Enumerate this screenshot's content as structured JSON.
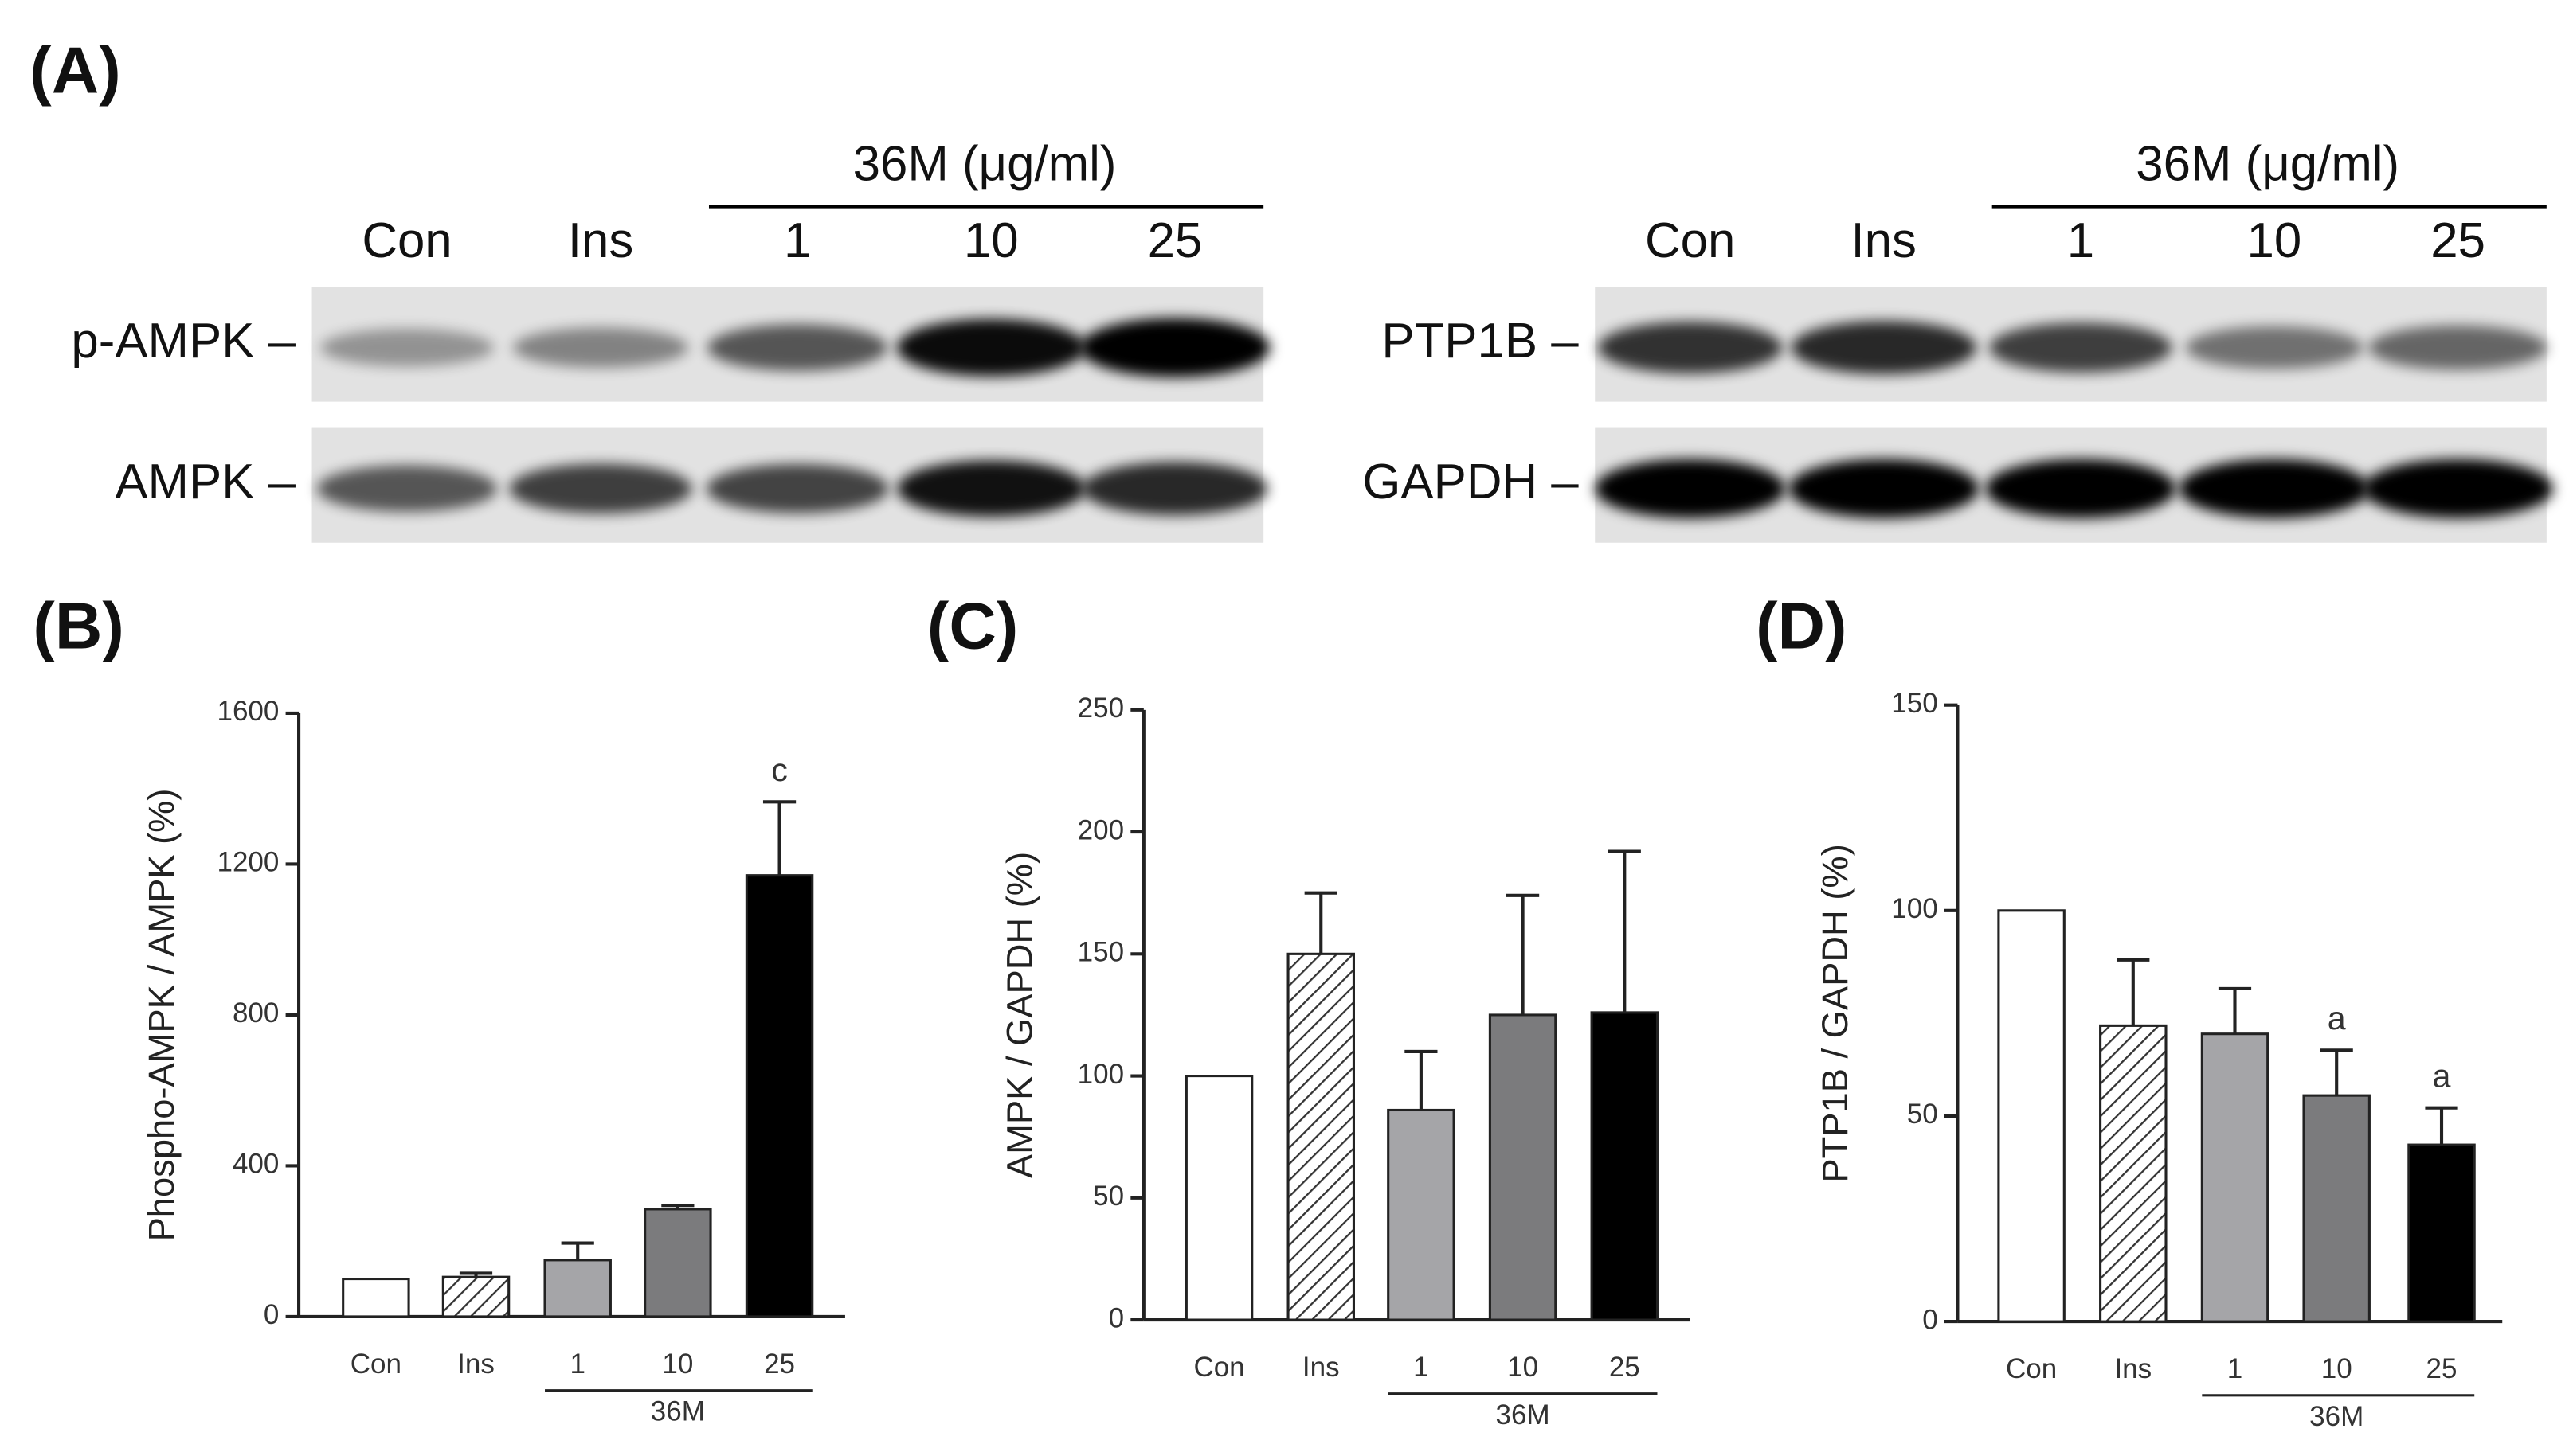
{
  "blots_panel": "(A)",
  "blots": [
    {
      "treatment": "36M (μg/ml)",
      "lanes": [
        "Con",
        "Ins",
        "1",
        "10",
        "25"
      ],
      "rows": [
        "p-AMPK –",
        "AMPK –"
      ]
    },
    {
      "treatment": "36M (μg/ml)",
      "lanes": [
        "Con",
        "Ins",
        "1",
        "10",
        "25"
      ],
      "rows": [
        "PTP1B –",
        "GAPDH –"
      ]
    }
  ],
  "chart_data": [
    {
      "type": "bar",
      "panel": "(B)",
      "ylabel": "Phospho-AMPK / AMPK (%)",
      "categories": [
        "Con",
        "Ins",
        "1",
        "10",
        "25"
      ],
      "group_label": "36M",
      "values": [
        100,
        105,
        150,
        285,
        1170
      ],
      "errors": [
        null,
        10,
        45,
        10,
        195
      ],
      "annotations": [
        null,
        null,
        null,
        null,
        "c"
      ],
      "colors": [
        "#ffffff",
        "#ffffff",
        "#a5a5a8",
        "#7b7b7d",
        "#000000"
      ],
      "patterns": [
        null,
        "hatch",
        null,
        null,
        null
      ],
      "ylim": [
        0,
        1600
      ],
      "yticks": [
        0,
        400,
        800,
        1200,
        1600
      ]
    },
    {
      "type": "bar",
      "panel": "(C)",
      "ylabel": "AMPK / GAPDH (%)",
      "categories": [
        "Con",
        "Ins",
        "1",
        "10",
        "25"
      ],
      "group_label": "36M",
      "values": [
        100,
        150,
        86,
        125,
        126
      ],
      "errors": [
        null,
        25,
        24,
        49,
        66
      ],
      "colors": [
        "#ffffff",
        "#ffffff",
        "#a5a5a8",
        "#7b7b7d",
        "#000000"
      ],
      "patterns": [
        null,
        "hatch",
        null,
        null,
        null
      ],
      "ylim": [
        0,
        250
      ],
      "yticks": [
        0,
        50,
        100,
        150,
        200,
        250
      ]
    },
    {
      "type": "bar",
      "panel": "(D)",
      "ylabel": "PTP1B / GAPDH (%)",
      "categories": [
        "Con",
        "Ins",
        "1",
        "10",
        "25"
      ],
      "group_label": "36M",
      "values": [
        100,
        72,
        70,
        55,
        43
      ],
      "errors": [
        null,
        16,
        11,
        11,
        9
      ],
      "annotations": [
        null,
        null,
        null,
        "a",
        "a"
      ],
      "colors": [
        "#ffffff",
        "#ffffff",
        "#a5a5a8",
        "#7b7b7d",
        "#000000"
      ],
      "patterns": [
        null,
        "hatch",
        null,
        null,
        null
      ],
      "ylim": [
        0,
        150
      ],
      "yticks": [
        0,
        50,
        100,
        150
      ]
    }
  ]
}
